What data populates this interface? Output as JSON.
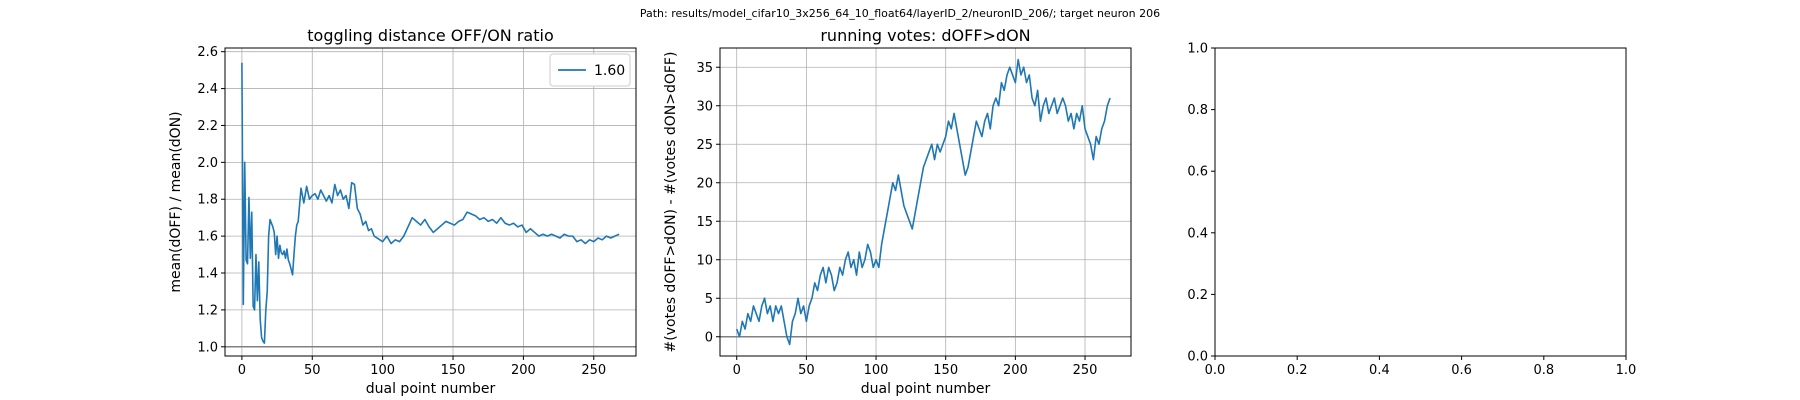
{
  "suptitle": "Path: results/model_cifar10_3x256_64_10_float64/layerID_2/neuronID_206/; target neuron 206",
  "chart_data": [
    {
      "type": "line",
      "title": "toggling distance OFF/ON ratio",
      "xlabel": "dual point number",
      "ylabel": "mean(dOFF) / mean(dON)",
      "xlim": [
        -12,
        280
      ],
      "ylim": [
        0.95,
        2.62
      ],
      "xticks": [
        0,
        50,
        100,
        150,
        200,
        250
      ],
      "yticks": [
        1.0,
        1.2,
        1.4,
        1.6,
        1.8,
        2.0,
        2.2,
        2.4,
        2.6
      ],
      "ytick_labels": [
        "1.0",
        "1.2",
        "1.4",
        "1.6",
        "1.8",
        "2.0",
        "2.2",
        "2.4",
        "2.6"
      ],
      "grid": true,
      "legend": "top-right",
      "hline": 1.0,
      "line_color": "#1f77b4",
      "series": [
        {
          "name": "1.60",
          "x": [
            0,
            1,
            2,
            3,
            4,
            5,
            6,
            7,
            8,
            9,
            10,
            11,
            12,
            13,
            14,
            15,
            16,
            17,
            18,
            19,
            20,
            21,
            22,
            23,
            24,
            25,
            26,
            27,
            28,
            29,
            30,
            31,
            32,
            33,
            34,
            35,
            36,
            37,
            38,
            39,
            40,
            42,
            44,
            46,
            48,
            50,
            52,
            54,
            56,
            58,
            60,
            62,
            64,
            66,
            68,
            70,
            72,
            74,
            76,
            78,
            80,
            82,
            84,
            86,
            88,
            90,
            92,
            94,
            96,
            98,
            100,
            103,
            106,
            109,
            112,
            115,
            118,
            121,
            124,
            127,
            130,
            133,
            136,
            139,
            142,
            145,
            148,
            151,
            154,
            157,
            160,
            163,
            166,
            169,
            172,
            175,
            178,
            181,
            184,
            187,
            190,
            193,
            196,
            199,
            202,
            205,
            208,
            211,
            214,
            217,
            220,
            223,
            226,
            229,
            232,
            235,
            238,
            241,
            244,
            247,
            250,
            253,
            256,
            259,
            262,
            265,
            268
          ],
          "y": [
            2.54,
            1.23,
            2.0,
            1.47,
            1.45,
            1.81,
            1.48,
            1.73,
            1.22,
            1.2,
            1.5,
            1.25,
            1.46,
            1.15,
            1.05,
            1.03,
            1.02,
            1.2,
            1.3,
            1.6,
            1.69,
            1.67,
            1.65,
            1.62,
            1.5,
            1.6,
            1.48,
            1.55,
            1.51,
            1.5,
            1.52,
            1.48,
            1.53,
            1.47,
            1.45,
            1.42,
            1.39,
            1.5,
            1.6,
            1.66,
            1.68,
            1.86,
            1.78,
            1.87,
            1.8,
            1.82,
            1.83,
            1.8,
            1.85,
            1.82,
            1.79,
            1.82,
            1.78,
            1.88,
            1.82,
            1.85,
            1.8,
            1.82,
            1.75,
            1.89,
            1.88,
            1.75,
            1.72,
            1.66,
            1.68,
            1.63,
            1.64,
            1.6,
            1.59,
            1.58,
            1.57,
            1.6,
            1.56,
            1.58,
            1.57,
            1.6,
            1.65,
            1.7,
            1.68,
            1.66,
            1.69,
            1.65,
            1.62,
            1.64,
            1.66,
            1.68,
            1.67,
            1.66,
            1.68,
            1.69,
            1.73,
            1.72,
            1.71,
            1.69,
            1.7,
            1.68,
            1.69,
            1.67,
            1.7,
            1.67,
            1.66,
            1.67,
            1.65,
            1.66,
            1.62,
            1.64,
            1.62,
            1.6,
            1.61,
            1.6,
            1.61,
            1.6,
            1.59,
            1.61,
            1.6,
            1.6,
            1.57,
            1.58,
            1.56,
            1.58,
            1.57,
            1.59,
            1.58,
            1.6,
            1.59,
            1.6,
            1.61
          ]
        }
      ]
    },
    {
      "type": "line",
      "title": "running votes: dOFF>dON",
      "xlabel": "dual point number",
      "ylabel": "#(votes dOFF>dON) - #(votes dON>dOFF)",
      "xlim": [
        -12,
        283
      ],
      "ylim": [
        -2.5,
        37.5
      ],
      "xticks": [
        0,
        50,
        100,
        150,
        200,
        250
      ],
      "yticks": [
        0,
        5,
        10,
        15,
        20,
        25,
        30,
        35
      ],
      "ytick_labels": [
        "0",
        "5",
        "10",
        "15",
        "20",
        "25",
        "30",
        "35"
      ],
      "grid": true,
      "hline": 0,
      "line_color": "#1f77b4",
      "series": [
        {
          "x": [
            0,
            2,
            4,
            6,
            8,
            10,
            12,
            14,
            16,
            18,
            20,
            22,
            24,
            26,
            28,
            30,
            32,
            34,
            36,
            38,
            40,
            42,
            44,
            46,
            48,
            50,
            52,
            54,
            56,
            58,
            60,
            62,
            64,
            66,
            68,
            70,
            72,
            74,
            76,
            78,
            80,
            82,
            84,
            86,
            88,
            90,
            92,
            94,
            96,
            98,
            100,
            102,
            104,
            106,
            108,
            110,
            112,
            114,
            116,
            118,
            120,
            122,
            124,
            126,
            128,
            130,
            132,
            134,
            136,
            138,
            140,
            142,
            144,
            146,
            148,
            150,
            152,
            154,
            156,
            158,
            160,
            162,
            164,
            166,
            168,
            170,
            172,
            174,
            176,
            178,
            180,
            182,
            184,
            186,
            188,
            190,
            192,
            194,
            196,
            198,
            200,
            202,
            204,
            206,
            208,
            210,
            212,
            214,
            216,
            218,
            220,
            222,
            224,
            226,
            228,
            230,
            232,
            234,
            236,
            238,
            240,
            242,
            244,
            246,
            248,
            250,
            252,
            254,
            256,
            258,
            260,
            262,
            264,
            266,
            268
          ],
          "y": [
            1,
            0,
            2,
            1,
            3,
            2,
            4,
            3,
            2,
            4,
            5,
            3,
            4,
            2,
            4,
            3,
            4,
            2,
            0,
            -1,
            2,
            3,
            5,
            3,
            4,
            2,
            4,
            5,
            7,
            6,
            8,
            9,
            7,
            9,
            8,
            6,
            7,
            9,
            8,
            10,
            11,
            9,
            10,
            8,
            11,
            9,
            10,
            12,
            11,
            9,
            10,
            9,
            12,
            14,
            16,
            18,
            20,
            19,
            21,
            19,
            17,
            16,
            15,
            14,
            16,
            18,
            20,
            22,
            23,
            24,
            25,
            23,
            25,
            24,
            25,
            26,
            28,
            27,
            29,
            27,
            25,
            23,
            21,
            22,
            24,
            26,
            28,
            27,
            26,
            28,
            29,
            27,
            30,
            31,
            30,
            33,
            32,
            34,
            35,
            34,
            33,
            36,
            34,
            35,
            33,
            34,
            31,
            30,
            32,
            28,
            30,
            31,
            29,
            30,
            31,
            29,
            30,
            31,
            30,
            28,
            29,
            27,
            29,
            28,
            30,
            27,
            26,
            25,
            23,
            26,
            25,
            27,
            28,
            30,
            31
          ]
        }
      ]
    },
    {
      "type": "line",
      "title": "",
      "xlabel": "",
      "ylabel": "",
      "xlim": [
        0,
        1
      ],
      "ylim": [
        0,
        1
      ],
      "xticks": [
        0,
        0.2,
        0.4,
        0.6,
        0.8,
        1.0
      ],
      "xtick_labels": [
        "0.0",
        "0.2",
        "0.4",
        "0.6",
        "0.8",
        "1.0"
      ],
      "yticks": [
        0,
        0.2,
        0.4,
        0.6,
        0.8,
        1.0
      ],
      "ytick_labels": [
        "0.0",
        "0.2",
        "0.4",
        "0.6",
        "0.8",
        "1.0"
      ],
      "grid": false,
      "series": []
    }
  ]
}
